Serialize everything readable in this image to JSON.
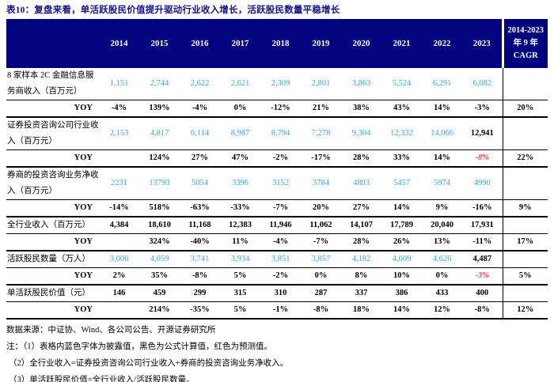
{
  "title": "表10：复盘来看，单活跃股民价值提升驱动行业收入增长，活跃股民数量平稳增长",
  "colors": {
    "header_bg": "#03037f",
    "title_navy": "#12128a",
    "disclosed_blue": "#35a5de",
    "computed_black": "#000000",
    "forecast_red": "#e8474d"
  },
  "table": {
    "years": [
      "2014",
      "2015",
      "2016",
      "2017",
      "2018",
      "2019",
      "2020",
      "2021",
      "2022",
      "2023"
    ],
    "cagr_header": [
      "2014-2023",
      "年 9 年",
      "CAGR"
    ],
    "rows": [
      {
        "kind": "data",
        "label": "8 家样本 2C 金融信息服务商收入（百万元）",
        "values": [
          "1,151",
          "2,744",
          "2,622",
          "2,621",
          "2,309",
          "2,801",
          "3,863",
          "5,524",
          "6,291",
          "6,082"
        ],
        "colors": [
          "blue",
          "blue",
          "blue",
          "blue",
          "blue",
          "blue",
          "blue",
          "blue",
          "blue",
          "blue"
        ],
        "cagr": ""
      },
      {
        "kind": "yoy",
        "label": "YOY",
        "values": [
          "-4%",
          "139%",
          "-4%",
          "0%",
          "-12%",
          "21%",
          "38%",
          "43%",
          "14%",
          "-3%"
        ],
        "colors": [
          "black",
          "black",
          "black",
          "black",
          "black",
          "black",
          "black",
          "black",
          "black",
          "black"
        ],
        "cagr": "20%"
      },
      {
        "kind": "data",
        "label": "证券投资咨询公司行业收入（百万元）",
        "values": [
          "2,153",
          "4,817",
          "6,114",
          "8,987",
          "8,794",
          "7,278",
          "9,304",
          "12,332",
          "14,066",
          "12,941"
        ],
        "colors": [
          "blue",
          "blue",
          "blue",
          "blue",
          "blue",
          "blue",
          "blue",
          "blue",
          "blue",
          "black"
        ],
        "cagr": ""
      },
      {
        "kind": "yoy",
        "label": "YOY",
        "values": [
          "",
          "124%",
          "27%",
          "47%",
          "-2%",
          "-17%",
          "28%",
          "33%",
          "14%",
          "-8%"
        ],
        "colors": [
          "",
          "black",
          "black",
          "black",
          "black",
          "black",
          "black",
          "black",
          "black",
          "red"
        ],
        "cagr": "22%"
      },
      {
        "kind": "data",
        "label": "券商的投资咨询业务净收入（百万元）",
        "values": [
          "2231",
          "13793",
          "5054",
          "3396",
          "3152",
          "3784",
          "4803",
          "5457",
          "5974",
          "4990"
        ],
        "colors": [
          "blue",
          "blue",
          "blue",
          "blue",
          "blue",
          "blue",
          "blue",
          "blue",
          "blue",
          "blue"
        ],
        "cagr": ""
      },
      {
        "kind": "yoy",
        "label": "YOY",
        "values": [
          "-14%",
          "518%",
          "-63%",
          "-33%",
          "-7%",
          "20%",
          "27%",
          "14%",
          "9%",
          "-16%"
        ],
        "colors": [
          "black",
          "black",
          "black",
          "black",
          "black",
          "black",
          "black",
          "black",
          "black",
          "black"
        ],
        "cagr": "9%"
      },
      {
        "kind": "data",
        "label": "全行业收入（百万元）",
        "values": [
          "4,384",
          "18,610",
          "11,168",
          "12,383",
          "11,946",
          "11,062",
          "14,107",
          "17,789",
          "20,040",
          "17,931"
        ],
        "colors": [
          "black",
          "black",
          "black",
          "black",
          "black",
          "black",
          "black",
          "black",
          "black",
          "black"
        ],
        "cagr": ""
      },
      {
        "kind": "yoy",
        "label": "YOY",
        "values": [
          "",
          "324%",
          "-40%",
          "11%",
          "-4%",
          "-7%",
          "28%",
          "26%",
          "13%",
          "-11%"
        ],
        "colors": [
          "",
          "black",
          "black",
          "black",
          "black",
          "black",
          "black",
          "black",
          "black",
          "black"
        ],
        "cagr": "17%"
      },
      {
        "kind": "data",
        "label": "活跃股民数量（万人）",
        "values": [
          "3,006",
          "4,059",
          "3,741",
          "3,934",
          "3,851",
          "3,857",
          "4,182",
          "4,609",
          "4,626",
          "4,487"
        ],
        "colors": [
          "blue",
          "blue",
          "blue",
          "blue",
          "blue",
          "blue",
          "blue",
          "blue",
          "blue",
          "black"
        ],
        "cagr": ""
      },
      {
        "kind": "yoy",
        "label": "YOY",
        "values": [
          "2%",
          "35%",
          "-8%",
          "5%",
          "-2%",
          "0%",
          "8%",
          "10%",
          "0%",
          "-3%"
        ],
        "colors": [
          "black",
          "black",
          "black",
          "black",
          "black",
          "black",
          "black",
          "black",
          "black",
          "red"
        ],
        "cagr": "5%"
      },
      {
        "kind": "data",
        "label": "单活跃股民价值（元）",
        "values": [
          "146",
          "459",
          "299",
          "315",
          "310",
          "287",
          "337",
          "386",
          "433",
          "400"
        ],
        "colors": [
          "black",
          "black",
          "black",
          "black",
          "black",
          "black",
          "black",
          "black",
          "black",
          "black"
        ],
        "cagr": ""
      },
      {
        "kind": "yoy",
        "label": "YOY",
        "values": [
          "",
          "214%",
          "-35%",
          "5%",
          "-1%",
          "-8%",
          "18%",
          "14%",
          "12%",
          "-8%"
        ],
        "colors": [
          "",
          "black",
          "black",
          "black",
          "black",
          "black",
          "black",
          "black",
          "black",
          "black"
        ],
        "cagr": "12%"
      }
    ]
  },
  "footer": {
    "source": "数据来源：中证协、Wind、各公司公告、开源证券研究所",
    "notes": [
      "注：（1）表格内蓝色字体为披露值，黑色为公式计算值，红色为预测值。",
      "（2）全行业收入=证券投资咨询公司行业收入+券商的投资咨询业务净收入。",
      "（3）单活跃股民价值=全行业收入/活跃股民数量。"
    ]
  }
}
